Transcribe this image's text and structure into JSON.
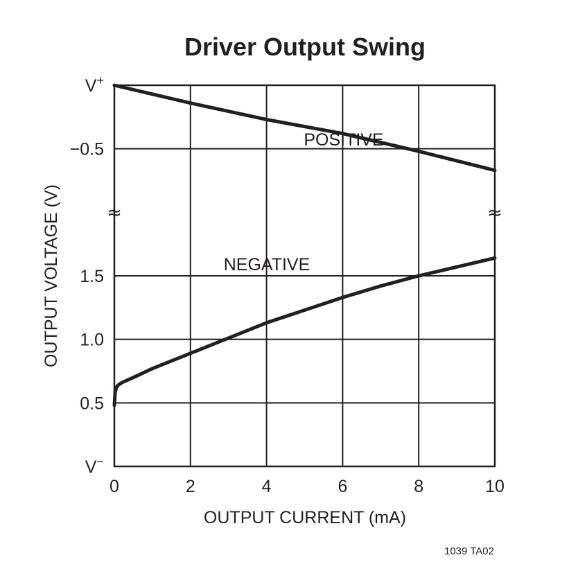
{
  "chart_data": {
    "type": "line",
    "title": "Driver Output Swing",
    "xlabel": "OUTPUT CURRENT (mA)",
    "ylabel": "OUTPUT VOLTAGE (V)",
    "xlim": [
      0,
      10
    ],
    "x_ticks": [
      "0",
      "2",
      "4",
      "6",
      "8",
      "10"
    ],
    "y_tick_labels": [
      "V−",
      "0.5",
      "1.0",
      "1.5",
      "",
      "−0.5",
      "V+"
    ],
    "y_axis_break": true,
    "y_axis_break_symbol": "≈",
    "grid": true,
    "series": [
      {
        "name": "POSITIVE",
        "reference": "V+",
        "x": [
          0,
          2,
          4,
          6,
          8,
          10
        ],
        "y": [
          0,
          -0.14,
          -0.27,
          -0.38,
          -0.52,
          -0.67
        ]
      },
      {
        "name": "NEGATIVE",
        "reference": "V−",
        "x": [
          0,
          0.02,
          0.05,
          0.1,
          0.2,
          0.5,
          1,
          2,
          3,
          4,
          5,
          6,
          7,
          8,
          9,
          10
        ],
        "y": [
          0.48,
          0.58,
          0.62,
          0.64,
          0.66,
          0.7,
          0.77,
          0.89,
          1.01,
          1.13,
          1.23,
          1.33,
          1.42,
          1.5,
          1.57,
          1.64
        ]
      }
    ],
    "figure_id": "1039 TA02"
  }
}
